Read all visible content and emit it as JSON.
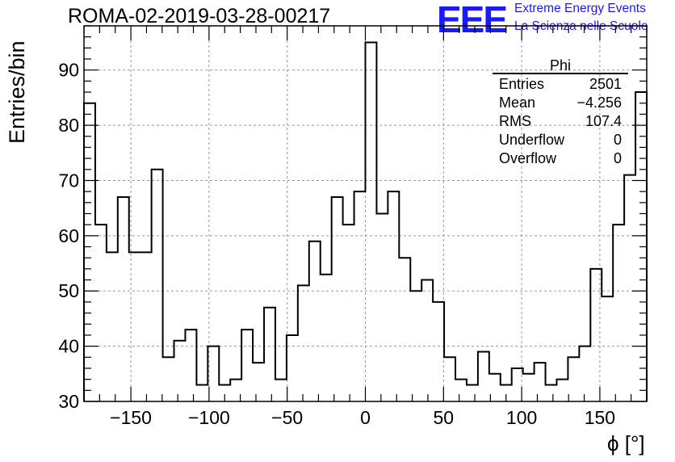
{
  "header": {
    "run_title": "ROMA-02-2019-03-28-00217",
    "logo_text": "EEE",
    "logo_line1": "Extreme Energy Events",
    "logo_line2": "La Scienza nelle Scuole"
  },
  "colors": {
    "logo": "#1a1aff",
    "line": "#000000",
    "grid": "#9a9a9a"
  },
  "stats": {
    "title": "Phi",
    "rows": [
      {
        "label": "Entries",
        "value": "2501"
      },
      {
        "label": "Mean",
        "value": "−4.256"
      },
      {
        "label": "RMS",
        "value": "107.4"
      },
      {
        "label": "Underflow",
        "value": "0"
      },
      {
        "label": "Overflow",
        "value": "0"
      }
    ]
  },
  "chart_data": {
    "type": "bar",
    "histogram_style": "step",
    "xlabel": "ϕ [°]",
    "ylabel": "Entries/bin",
    "xlim": [
      -180,
      180
    ],
    "ylim": [
      30,
      98
    ],
    "grid": true,
    "bin_width": 7.2,
    "x_ticks": [
      -150,
      -100,
      -50,
      0,
      50,
      100,
      150
    ],
    "x_tick_labels": [
      "−150",
      "−100",
      "−50",
      "0",
      "50",
      "100",
      "150"
    ],
    "y_ticks": [
      30,
      40,
      50,
      60,
      70,
      80,
      90
    ],
    "y_tick_labels": [
      "30",
      "40",
      "50",
      "60",
      "70",
      "80",
      "90"
    ],
    "bin_left_edges": [
      -180,
      -172.8,
      -165.6,
      -158.4,
      -151.2,
      -144,
      -136.8,
      -129.6,
      -122.4,
      -115.2,
      -108,
      -100.8,
      -93.6,
      -86.4,
      -79.2,
      -72,
      -64.8,
      -57.6,
      -50.4,
      -43.2,
      -36,
      -28.8,
      -21.6,
      -14.4,
      -7.2,
      0,
      7.2,
      14.4,
      21.6,
      28.8,
      36,
      43.2,
      50.4,
      57.6,
      64.8,
      72,
      79.2,
      86.4,
      93.6,
      100.8,
      108,
      115.2,
      122.4,
      129.6,
      136.8,
      144,
      151.2,
      158.4,
      165.6,
      172.8
    ],
    "values": [
      84,
      62,
      57,
      67,
      57,
      57,
      72,
      38,
      41,
      43,
      33,
      40,
      33,
      34,
      43,
      37,
      47,
      34,
      42,
      51,
      59,
      53,
      67,
      62,
      68,
      95,
      64,
      68,
      56,
      50,
      52,
      48,
      38,
      34,
      33,
      39,
      35,
      33,
      36,
      35,
      37,
      33,
      34,
      38,
      40,
      54,
      49,
      62,
      71,
      86
    ]
  }
}
